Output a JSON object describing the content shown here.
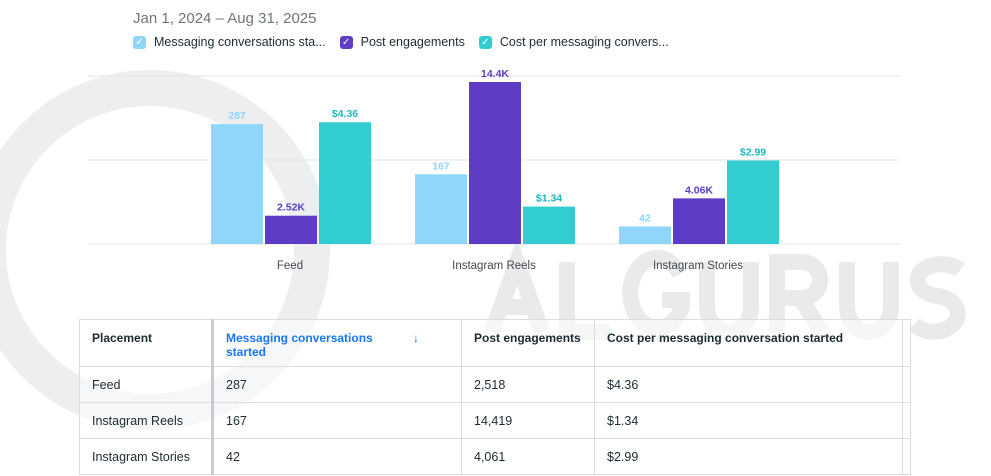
{
  "watermark": "ALGURUS",
  "date_range": "Jan 1, 2024 – Aug 31, 2025",
  "chart_data": {
    "type": "bar",
    "categories": [
      "Feed",
      "Instagram Reels",
      "Instagram Stories"
    ],
    "series": [
      {
        "name": "Messaging conversations sta...",
        "values": [
          287,
          167,
          42
        ],
        "labels": [
          "287",
          "167",
          "42"
        ],
        "color": "#8fd6fa",
        "label_color": "#8fd6fa",
        "ylim": [
          0,
          388
        ]
      },
      {
        "name": "Post engagements",
        "values": [
          2518,
          14419,
          4061
        ],
        "labels": [
          "2.52K",
          "14.4K",
          "4.06K"
        ],
        "color": "#5e3cc4",
        "label_color": "#5e3cc4",
        "ylim": [
          0,
          14419
        ]
      },
      {
        "name": "Cost per messaging convers...",
        "values": [
          4.36,
          1.34,
          2.99
        ],
        "labels": [
          "$4.36",
          "$1.34",
          "$2.99"
        ],
        "color": "#31cdd0",
        "label_color": "#1fb8bb",
        "ylim": [
          0,
          5.8
        ]
      }
    ],
    "grid": true,
    "legend": "top-left"
  },
  "table": {
    "headers": [
      "Placement",
      "Messaging conversations started",
      "Post engagements",
      "Cost per messaging conversation started"
    ],
    "sort_icon": "↓",
    "rows": [
      [
        "Feed",
        "287",
        "2,518",
        "$4.36"
      ],
      [
        "Instagram Reels",
        "167",
        "14,419",
        "$1.34"
      ],
      [
        "Instagram Stories",
        "42",
        "4,061",
        "$2.99"
      ]
    ]
  }
}
